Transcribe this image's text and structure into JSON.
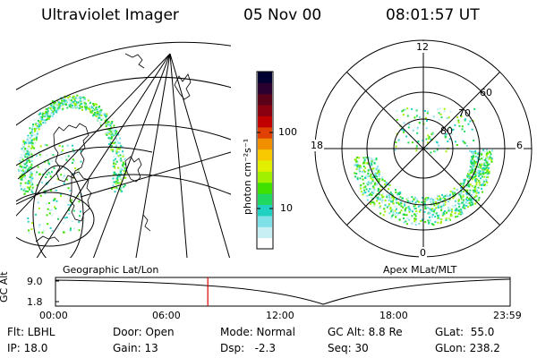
{
  "header": {
    "instrument": "Ultraviolet Imager",
    "date": "05 Nov 00",
    "time": "08:01:57 UT"
  },
  "geo_panel": {
    "label": "Geographic Lat/Lon"
  },
  "colorbar": {
    "unit_label": "photon cm⁻²s⁻¹",
    "ticks": [
      "100",
      "10"
    ],
    "colors": [
      "#000030",
      "#2a0030",
      "#5a0018",
      "#8a0010",
      "#c00000",
      "#e04000",
      "#f09000",
      "#f8c800",
      "#e0f000",
      "#a0f000",
      "#40e000",
      "#20d860",
      "#20d0c0",
      "#80e0e8",
      "#c8f0f4",
      "#ffffff"
    ]
  },
  "polar_panel": {
    "label": "Apex MLat/MLT",
    "mlt_labels": {
      "top": "12",
      "left": "18",
      "right": "6",
      "bottom": "0"
    },
    "mlat_labels": [
      "60",
      "70",
      "80"
    ]
  },
  "timeline": {
    "y_label": "GC Alt",
    "y_ticks": [
      "9.0",
      "1.8"
    ],
    "x_ticks": [
      "00:00",
      "06:00",
      "12:00",
      "18:00",
      "23:59"
    ],
    "current_time_fraction": 0.335,
    "marker_color": "#e00000"
  },
  "info": {
    "filter": "Flt: LBHL",
    "ip": "IP: 18.0",
    "door": "Door: Open",
    "gain": "Gain: 13",
    "mode": "Mode: Normal",
    "dsp": "Dsp:   -2.3",
    "gc_alt": "GC Alt: 8.8 Re",
    "seq": "Seq: 30",
    "glat": "GLat:  55.0",
    "glon": "GLon: 238.2"
  }
}
